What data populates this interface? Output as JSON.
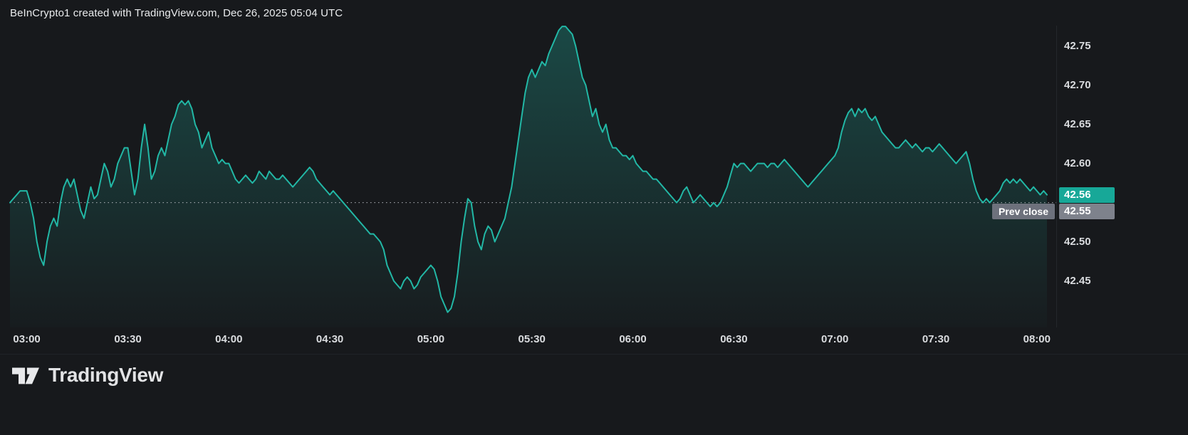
{
  "header": {
    "title": "BeInCrypto1 created with TradingView.com, Dec 26, 2025 05:04 UTC"
  },
  "colors": {
    "background": "#17191c",
    "line": "#22b8a6",
    "axis_text": "#dadcdf",
    "badge_current_bg": "#17a898",
    "badge_prev_bg": "#7e828c",
    "prev_label_bg": "#6d717c",
    "prev_close_line": "#b4b7bd"
  },
  "badges": {
    "current_value": "42.56",
    "prev_close_label": "Prev close",
    "prev_close_value": "42.55"
  },
  "y_axis": {
    "ticks": [
      {
        "label": "42.75",
        "value": 42.75
      },
      {
        "label": "42.70",
        "value": 42.7
      },
      {
        "label": "42.65",
        "value": 42.65
      },
      {
        "label": "42.60",
        "value": 42.6
      },
      {
        "label": "42.50",
        "value": 42.5
      },
      {
        "label": "42.45",
        "value": 42.45
      }
    ]
  },
  "footer": {
    "logo_text": "TradingView"
  },
  "chart_data": {
    "type": "area",
    "title": "BeInCrypto1 created with TradingView.com, Dec 26, 2025 05:04 UTC",
    "x_start": "02:55",
    "x_end": "08:03",
    "interval": "1 minute",
    "x_tick_labels": [
      "03:00",
      "03:30",
      "04:00",
      "04:30",
      "05:00",
      "05:30",
      "06:00",
      "06:30",
      "07:00",
      "07:30",
      "08:00"
    ],
    "x_tick_indices": [
      5,
      35,
      65,
      95,
      125,
      155,
      185,
      215,
      245,
      275,
      305
    ],
    "ylim": [
      42.39,
      42.78
    ],
    "y_tick_values": [
      42.75,
      42.7,
      42.65,
      42.6,
      42.5,
      42.45
    ],
    "prev_close": 42.55,
    "last_price": 42.56,
    "values": [
      42.55,
      42.555,
      42.56,
      42.565,
      42.565,
      42.565,
      42.55,
      42.53,
      42.5,
      42.48,
      42.47,
      42.5,
      42.52,
      42.53,
      42.52,
      42.55,
      42.57,
      42.58,
      42.57,
      42.58,
      42.56,
      42.54,
      42.53,
      42.55,
      42.57,
      42.555,
      42.56,
      42.58,
      42.6,
      42.59,
      42.57,
      42.58,
      42.6,
      42.61,
      42.62,
      42.62,
      42.59,
      42.56,
      42.58,
      42.62,
      42.65,
      42.62,
      42.58,
      42.59,
      42.61,
      42.62,
      42.61,
      42.63,
      42.65,
      42.66,
      42.675,
      42.68,
      42.675,
      42.68,
      42.67,
      42.65,
      42.64,
      42.62,
      42.63,
      42.64,
      42.62,
      42.61,
      42.6,
      42.605,
      42.6,
      42.6,
      42.59,
      42.58,
      42.575,
      42.58,
      42.585,
      42.58,
      42.575,
      42.58,
      42.59,
      42.585,
      42.58,
      42.59,
      42.585,
      42.58,
      42.58,
      42.585,
      42.58,
      42.575,
      42.57,
      42.575,
      42.58,
      42.585,
      42.59,
      42.595,
      42.59,
      42.58,
      42.575,
      42.57,
      42.565,
      42.56,
      42.565,
      42.56,
      42.555,
      42.55,
      42.545,
      42.54,
      42.535,
      42.53,
      42.525,
      42.52,
      42.515,
      42.51,
      42.51,
      42.505,
      42.5,
      42.49,
      42.47,
      42.46,
      42.45,
      42.445,
      42.44,
      42.45,
      42.455,
      42.45,
      42.44,
      42.445,
      42.455,
      42.46,
      42.465,
      42.47,
      42.465,
      42.45,
      42.43,
      42.42,
      42.41,
      42.415,
      42.43,
      42.46,
      42.5,
      42.53,
      42.555,
      42.55,
      42.52,
      42.5,
      42.49,
      42.51,
      42.52,
      42.515,
      42.5,
      42.51,
      42.52,
      42.53,
      42.55,
      42.57,
      42.6,
      42.63,
      42.66,
      42.69,
      42.71,
      42.72,
      42.71,
      42.72,
      42.73,
      42.725,
      42.74,
      42.75,
      42.76,
      42.77,
      42.775,
      42.775,
      42.77,
      42.765,
      42.75,
      42.73,
      42.71,
      42.7,
      42.68,
      42.66,
      42.67,
      42.65,
      42.64,
      42.65,
      42.63,
      42.62,
      42.62,
      42.615,
      42.61,
      42.61,
      42.605,
      42.61,
      42.6,
      42.595,
      42.59,
      42.59,
      42.585,
      42.58,
      42.58,
      42.575,
      42.57,
      42.565,
      42.56,
      42.555,
      42.55,
      42.555,
      42.565,
      42.57,
      42.56,
      42.55,
      42.555,
      42.56,
      42.555,
      42.55,
      42.545,
      42.55,
      42.545,
      42.55,
      42.56,
      42.57,
      42.585,
      42.6,
      42.595,
      42.6,
      42.6,
      42.595,
      42.59,
      42.595,
      42.6,
      42.6,
      42.6,
      42.595,
      42.6,
      42.6,
      42.595,
      42.6,
      42.605,
      42.6,
      42.595,
      42.59,
      42.585,
      42.58,
      42.575,
      42.57,
      42.575,
      42.58,
      42.585,
      42.59,
      42.595,
      42.6,
      42.605,
      42.61,
      42.62,
      42.64,
      42.655,
      42.665,
      42.67,
      42.66,
      42.67,
      42.665,
      42.67,
      42.66,
      42.655,
      42.66,
      42.65,
      42.64,
      42.635,
      42.63,
      42.625,
      42.62,
      42.62,
      42.625,
      42.63,
      42.625,
      42.62,
      42.625,
      42.62,
      42.615,
      42.62,
      42.62,
      42.615,
      42.62,
      42.625,
      42.62,
      42.615,
      42.61,
      42.605,
      42.6,
      42.605,
      42.61,
      42.615,
      42.6,
      42.58,
      42.565,
      42.555,
      42.55,
      42.555,
      42.55,
      42.555,
      42.56,
      42.565,
      42.575,
      42.58,
      42.575,
      42.58,
      42.575,
      42.58,
      42.575,
      42.57,
      42.565,
      42.57,
      42.565,
      42.56,
      42.565,
      42.56
    ]
  }
}
